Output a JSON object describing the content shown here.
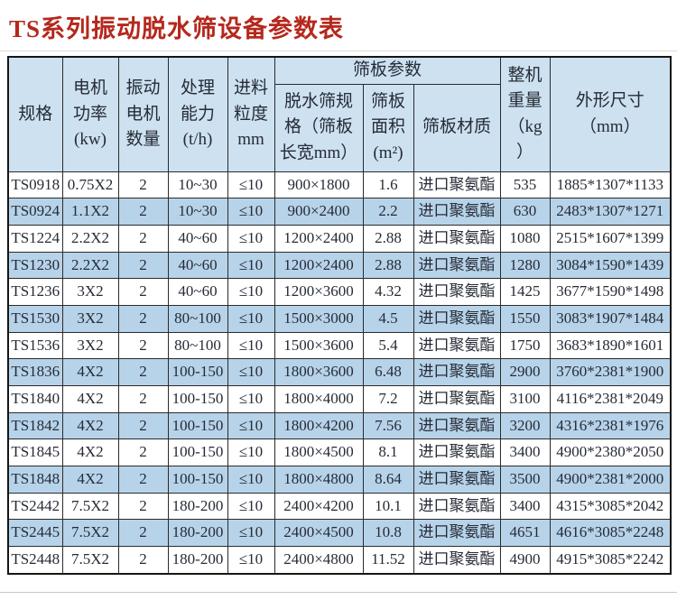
{
  "page": {
    "title": "TS系列振动脱水筛设备参数表"
  },
  "colors": {
    "title_red": "#b5281c",
    "header_bg": "#cde1f0",
    "alt_row_bg": "#b7d3e9",
    "border": "#2b2b2b",
    "text": "#262b36"
  },
  "table": {
    "headers": {
      "spec": "规格",
      "motor_power": "电机\n功率\n(kw)",
      "motor_count": "振动\n电机\n数量",
      "capacity": "处理\n能力\n(t/h)",
      "feed_size": "进料\n粒度\nmm",
      "screen_params_group": "筛板参数",
      "screen_spec": "脱水筛规\n格（筛板\n长宽mm）",
      "screen_area": "筛板\n面积\n(m²)",
      "screen_material": "筛板材质",
      "weight": "整机\n重量\n（kg\n）",
      "dimensions": "外形尺寸\n（mm）"
    },
    "rows": [
      [
        "TS0918",
        "0.75X2",
        "2",
        "10~30",
        "≤10",
        "900×1800",
        "1.6",
        "进口聚氨酯",
        "535",
        "1885*1307*1133"
      ],
      [
        "TS0924",
        "1.1X2",
        "2",
        "10~30",
        "≤10",
        "900×2400",
        "2.2",
        "进口聚氨酯",
        "630",
        "2483*1307*1271"
      ],
      [
        "TS1224",
        "2.2X2",
        "2",
        "40~60",
        "≤10",
        "1200×2400",
        "2.88",
        "进口聚氨酯",
        "1080",
        "2515*1607*1399"
      ],
      [
        "TS1230",
        "2.2X2",
        "2",
        "40~60",
        "≤10",
        "1200×2400",
        "2.88",
        "进口聚氨酯",
        "1280",
        "3084*1590*1439"
      ],
      [
        "TS1236",
        "3X2",
        "2",
        "40~60",
        "≤10",
        "1200×3600",
        "4.32",
        "进口聚氨酯",
        "1425",
        "3677*1590*1498"
      ],
      [
        "TS1530",
        "3X2",
        "2",
        "80~100",
        "≤10",
        "1500×3000",
        "4.5",
        "进口聚氨酯",
        "1550",
        "3083*1907*1484"
      ],
      [
        "TS1536",
        "3X2",
        "2",
        "80~100",
        "≤10",
        "1500×3600",
        "5.4",
        "进口聚氨酯",
        "1750",
        "3683*1890*1601"
      ],
      [
        "TS1836",
        "4X2",
        "2",
        "100-150",
        "≤10",
        "1800×3600",
        "6.48",
        "进口聚氨酯",
        "2900",
        "3760*2381*1900"
      ],
      [
        "TS1840",
        "4X2",
        "2",
        "100-150",
        "≤10",
        "1800×4000",
        "7.2",
        "进口聚氨酯",
        "3100",
        "4116*2381*2049"
      ],
      [
        "TS1842",
        "4X2",
        "2",
        "100-150",
        "≤10",
        "1800×4200",
        "7.56",
        "进口聚氨酯",
        "3200",
        "4316*2381*1976"
      ],
      [
        "TS1845",
        "4X2",
        "2",
        "100-150",
        "≤10",
        "1800×4500",
        "8.1",
        "进口聚氨酯",
        "3400",
        "4900*2380*2050"
      ],
      [
        "TS1848",
        "4X2",
        "2",
        "100-150",
        "≤10",
        "1800×4800",
        "8.64",
        "进口聚氨酯",
        "3500",
        "4900*2381*2000"
      ],
      [
        "TS2442",
        "7.5X2",
        "2",
        "180-200",
        "≤10",
        "2400×4200",
        "10.1",
        "进口聚氨酯",
        "3400",
        "4315*3085*2042"
      ],
      [
        "TS2445",
        "7.5X2",
        "2",
        "180-200",
        "≤10",
        "2400×4500",
        "10.8",
        "进口聚氨酯",
        "4651",
        "4616*3085*2248"
      ],
      [
        "TS2448",
        "7.5X2",
        "2",
        "180-200",
        "≤10",
        "2400×4800",
        "11.52",
        "进口聚氨酯",
        "4900",
        "4915*3085*2242"
      ]
    ]
  }
}
